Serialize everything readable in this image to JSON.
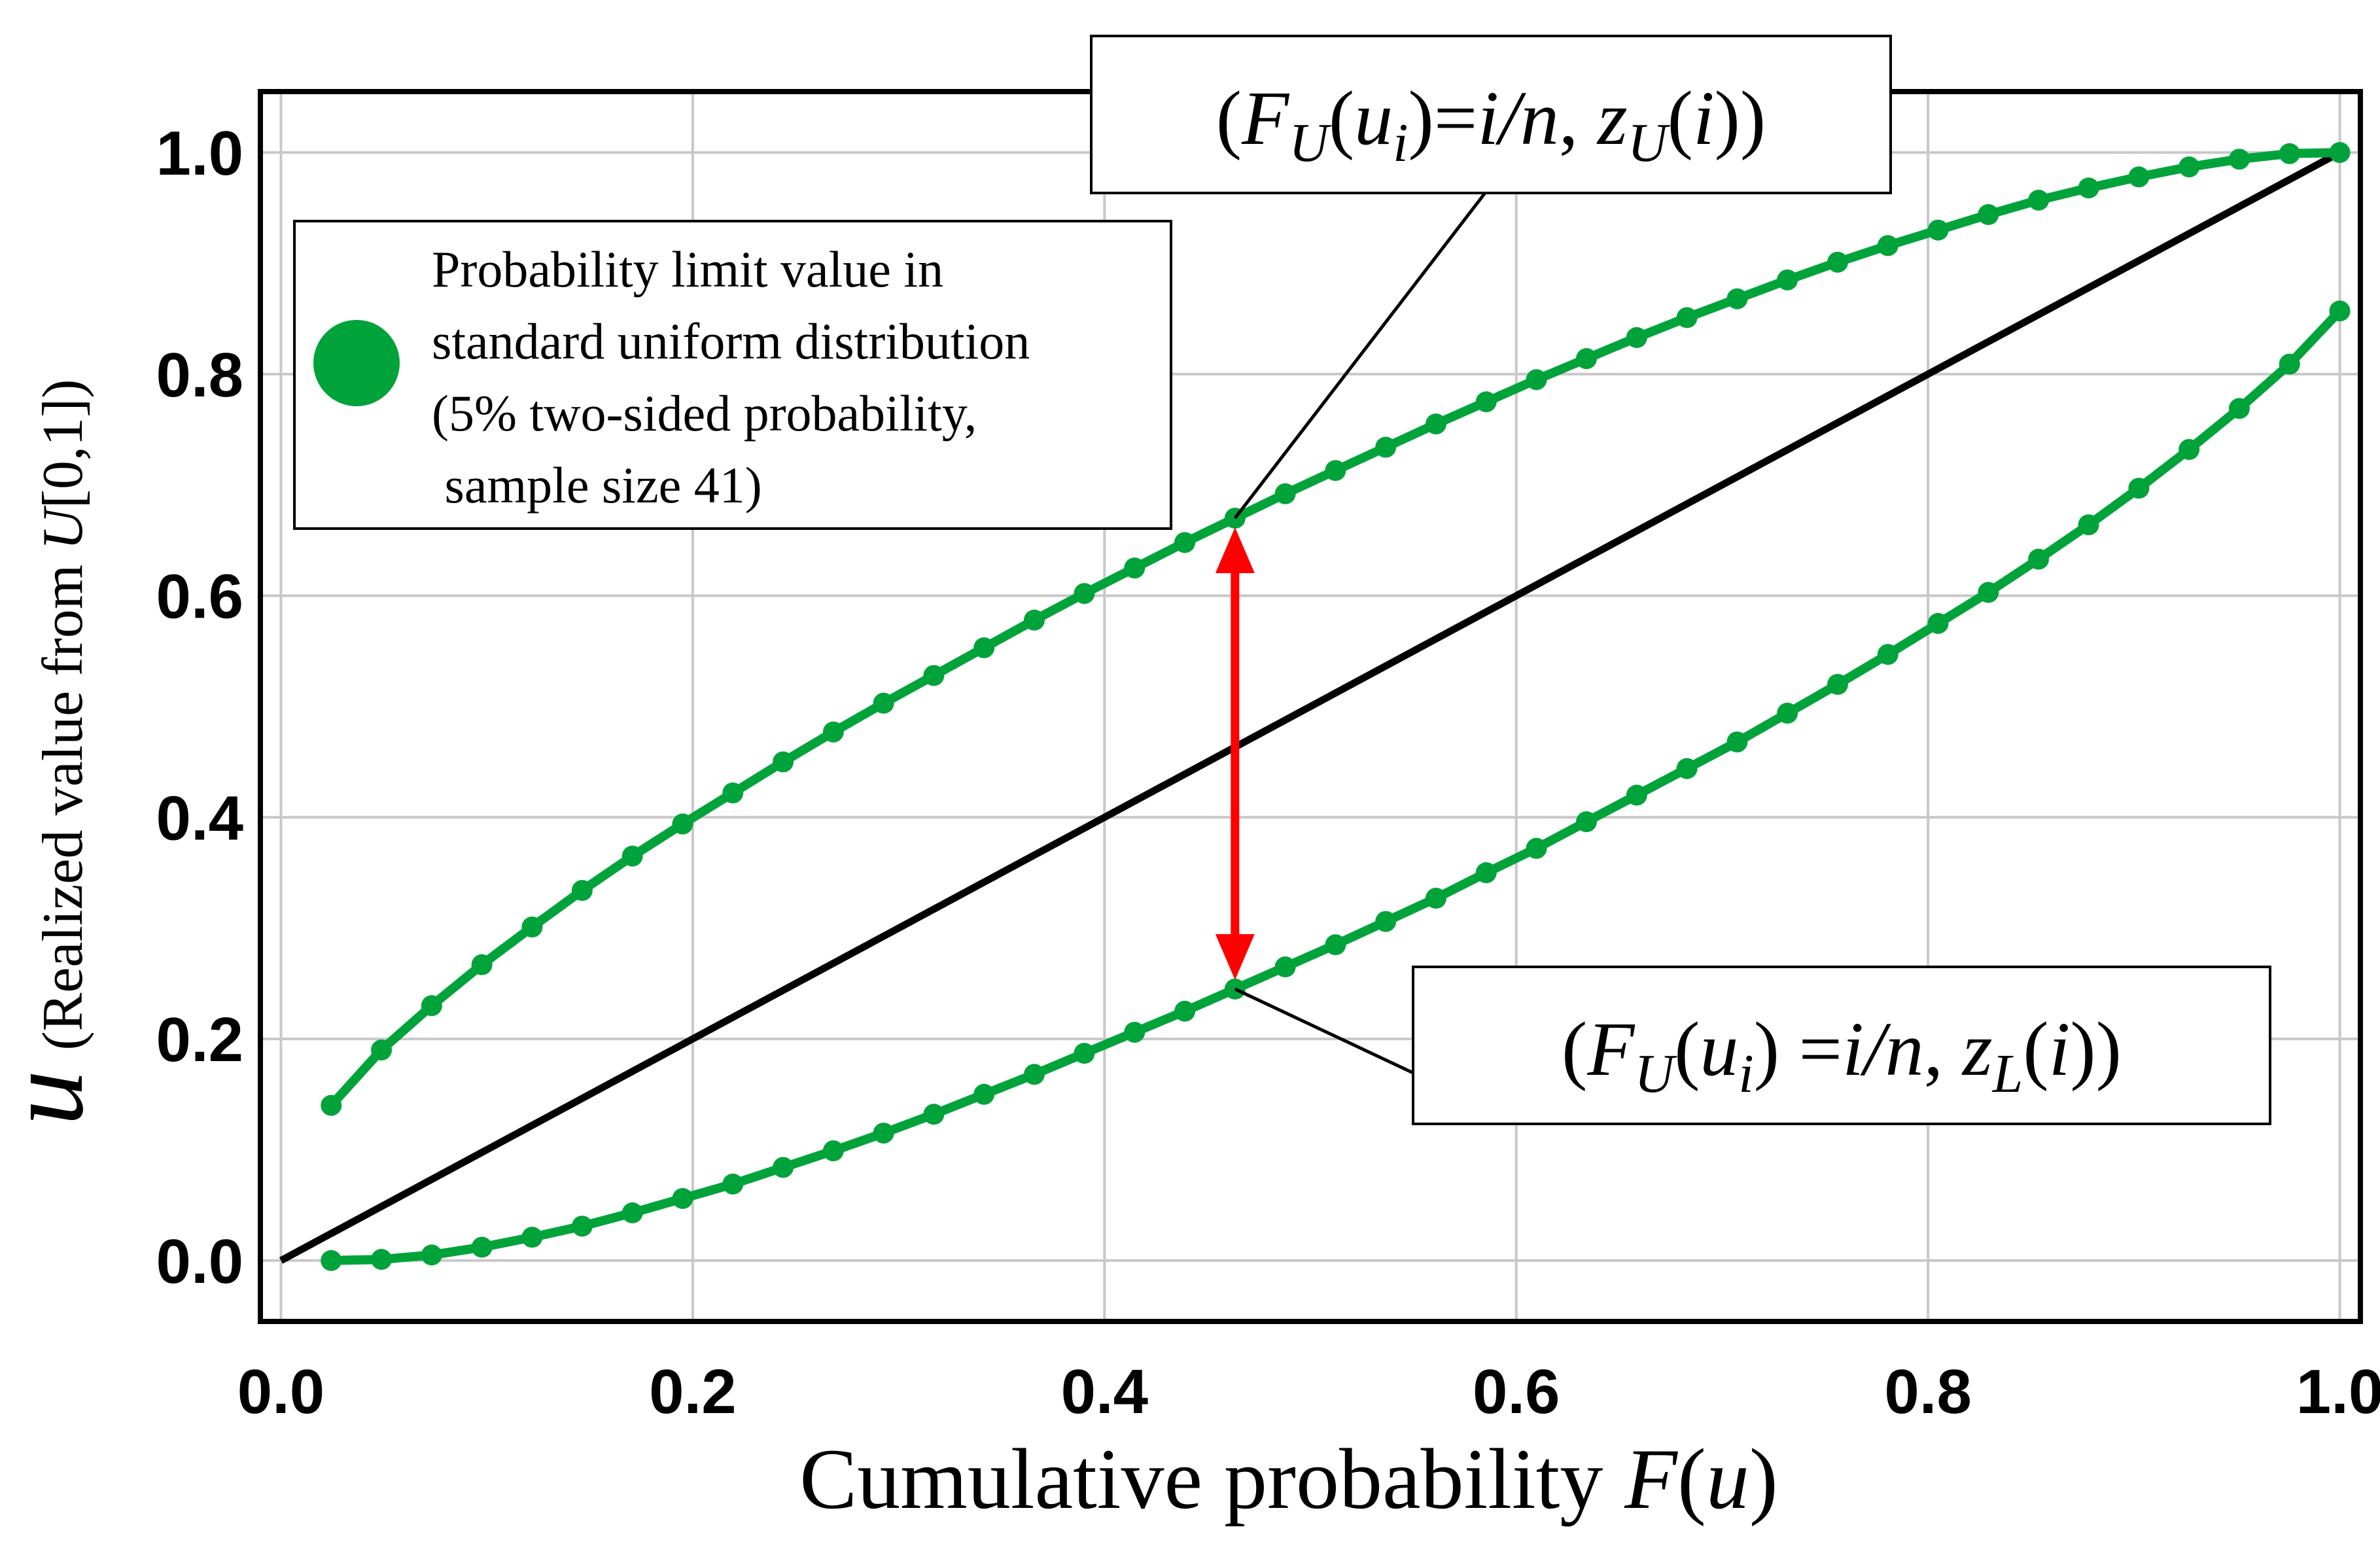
{
  "chart_data": {
    "type": "line",
    "title": "",
    "xlabel": {
      "prefix": "Cumulative probability ",
      "italic": "F",
      "open": "(",
      "italic2": "u",
      "close": ")"
    },
    "ylabel": {
      "symbol": "u",
      "prefix": "(Realized value from ",
      "italic": "U",
      "suffix": "[0,1])"
    },
    "xlim": [
      -0.01,
      1.01
    ],
    "ylim": [
      -0.055,
      1.055
    ],
    "xticks": [
      0.0,
      0.2,
      0.4,
      0.6,
      0.8,
      1.0
    ],
    "xtick_labels": [
      "0.0",
      "0.2",
      "0.4",
      "0.6",
      "0.8",
      "1.0"
    ],
    "yticks": [
      0.0,
      0.2,
      0.4,
      0.6,
      0.8,
      1.0
    ],
    "ytick_labels": [
      "0.0",
      "0.2",
      "0.4",
      "0.6",
      "0.8",
      "1.0"
    ],
    "grid": true,
    "colors": {
      "series": "#00a33a",
      "diagonal": "#000000",
      "arrow": "#ff0000",
      "grid": "#c8c8c8"
    },
    "legend": {
      "position": "top-left",
      "lines": [
        "Probability limit value in",
        "standard uniform distribution",
        "(5% two-sided probability,",
        " sample size 41)"
      ]
    },
    "diagonal": {
      "x": [
        0.0,
        1.0
      ],
      "y": [
        0.0,
        1.0
      ]
    },
    "series": [
      {
        "role": "upper",
        "x": [
          0.0244,
          0.0488,
          0.0732,
          0.0976,
          0.122,
          0.1463,
          0.1707,
          0.1951,
          0.2195,
          0.2439,
          0.2683,
          0.2927,
          0.3171,
          0.3415,
          0.3659,
          0.3902,
          0.4146,
          0.439,
          0.4634,
          0.4878,
          0.5122,
          0.5366,
          0.561,
          0.5854,
          0.6098,
          0.6341,
          0.6585,
          0.6829,
          0.7073,
          0.7317,
          0.7561,
          0.7805,
          0.8049,
          0.8293,
          0.8537,
          0.878,
          0.9024,
          0.9268,
          0.9512,
          0.9756,
          1.0
        ],
        "values": [
          0.14,
          0.19,
          0.23,
          0.267,
          0.301,
          0.334,
          0.365,
          0.394,
          0.422,
          0.45,
          0.477,
          0.503,
          0.528,
          0.553,
          0.578,
          0.602,
          0.625,
          0.648,
          0.67,
          0.692,
          0.713,
          0.734,
          0.755,
          0.775,
          0.795,
          0.814,
          0.833,
          0.851,
          0.868,
          0.885,
          0.901,
          0.916,
          0.93,
          0.944,
          0.957,
          0.968,
          0.978,
          0.987,
          0.994,
          0.999,
          1.0
        ]
      },
      {
        "role": "lower",
        "x": [
          0.0244,
          0.0488,
          0.0732,
          0.0976,
          0.122,
          0.1463,
          0.1707,
          0.1951,
          0.2195,
          0.2439,
          0.2683,
          0.2927,
          0.3171,
          0.3415,
          0.3659,
          0.3902,
          0.4146,
          0.439,
          0.4634,
          0.4878,
          0.5122,
          0.5366,
          0.561,
          0.5854,
          0.6098,
          0.6341,
          0.6585,
          0.6829,
          0.7073,
          0.7317,
          0.7561,
          0.7805,
          0.8049,
          0.8293,
          0.8537,
          0.878,
          0.9024,
          0.9268,
          0.9512,
          0.9756,
          1.0
        ],
        "values": [
          0.0,
          0.001,
          0.005,
          0.012,
          0.021,
          0.031,
          0.043,
          0.056,
          0.069,
          0.084,
          0.099,
          0.115,
          0.132,
          0.15,
          0.168,
          0.187,
          0.206,
          0.225,
          0.245,
          0.265,
          0.285,
          0.306,
          0.327,
          0.35,
          0.372,
          0.396,
          0.42,
          0.444,
          0.468,
          0.494,
          0.52,
          0.547,
          0.575,
          0.603,
          0.633,
          0.664,
          0.697,
          0.732,
          0.769,
          0.809,
          0.857
        ]
      }
    ],
    "arrow": {
      "x": 0.4634,
      "y_from": 0.245,
      "y_to": 0.67
    },
    "annotations": [
      {
        "id": "upper",
        "target": {
          "x": 0.4634,
          "y": 0.67
        },
        "parts": [
          {
            "t": "(",
            "s": "n"
          },
          {
            "t": "F",
            "s": "i"
          },
          {
            "t": "U",
            "s": "i",
            "sub": true
          },
          {
            "t": "(",
            "s": "n"
          },
          {
            "t": "u",
            "s": "i"
          },
          {
            "t": "i",
            "s": "i",
            "sub": true
          },
          {
            "t": ")=",
            "s": "n"
          },
          {
            "t": "i/n",
            "s": "i"
          },
          {
            "t": ", ",
            "s": "n"
          },
          {
            "t": "z",
            "s": "i"
          },
          {
            "t": "U",
            "s": "i",
            "sub": true
          },
          {
            "t": "(",
            "s": "n"
          },
          {
            "t": "i",
            "s": "i"
          },
          {
            "t": "))",
            "s": "n"
          }
        ]
      },
      {
        "id": "lower",
        "target": {
          "x": 0.4634,
          "y": 0.245
        },
        "parts": [
          {
            "t": "(",
            "s": "n"
          },
          {
            "t": "F",
            "s": "i"
          },
          {
            "t": "U",
            "s": "i",
            "sub": true
          },
          {
            "t": "(",
            "s": "n"
          },
          {
            "t": "u",
            "s": "i"
          },
          {
            "t": "i",
            "s": "i",
            "sub": true
          },
          {
            "t": ") =",
            "s": "n"
          },
          {
            "t": "i/n",
            "s": "i"
          },
          {
            "t": ", ",
            "s": "n"
          },
          {
            "t": "z",
            "s": "i"
          },
          {
            "t": "L",
            "s": "i",
            "sub": true
          },
          {
            "t": "(",
            "s": "n"
          },
          {
            "t": "i",
            "s": "i"
          },
          {
            "t": "))",
            "s": "n"
          }
        ]
      }
    ]
  }
}
